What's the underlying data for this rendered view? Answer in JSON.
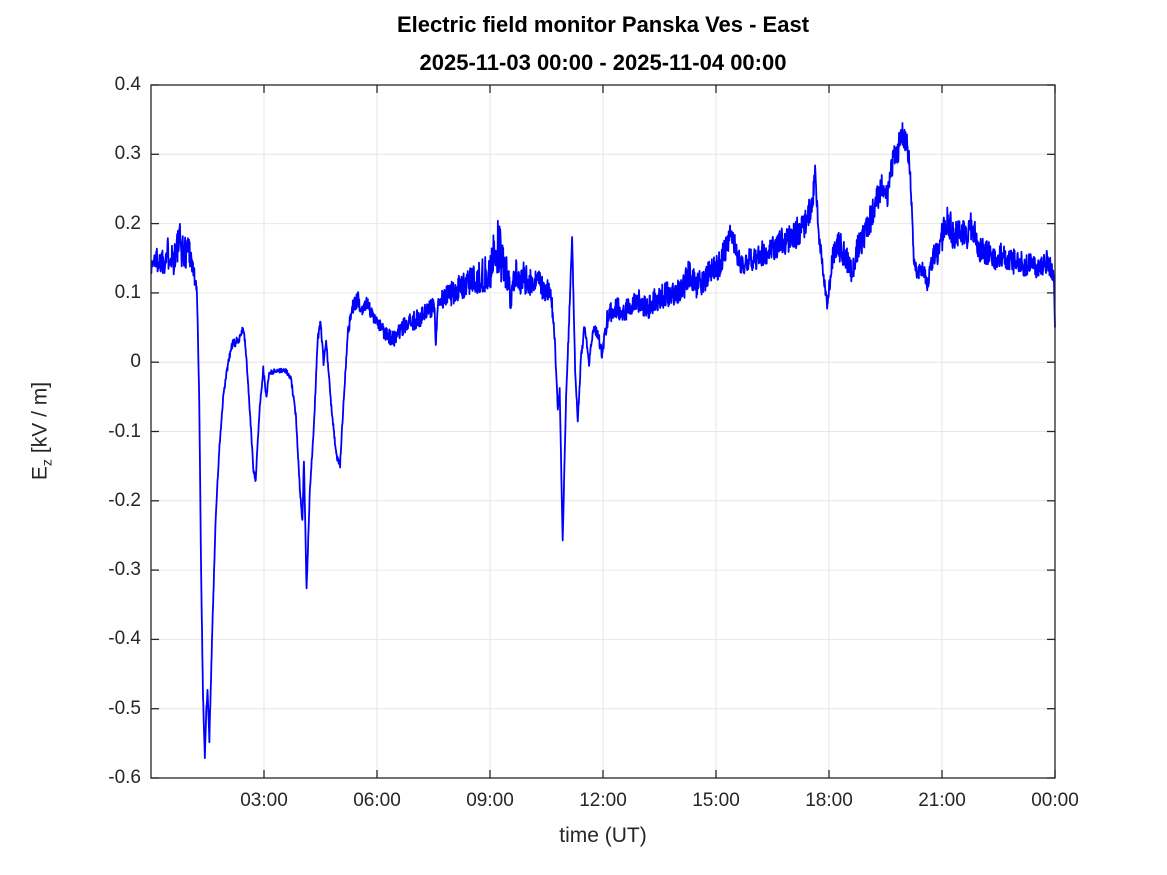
{
  "colors": {
    "line": "#0000FF",
    "grid": "#E6E6E6",
    "axis": "#262626",
    "title": "#000000",
    "background": "#FFFFFF"
  },
  "chart_data": {
    "type": "line",
    "title": "Electric field monitor Panska Ves - East",
    "subtitle": "2025-11-03 00:00 - 2025-11-04 00:00",
    "xlabel": "time (UT)",
    "ylabel": "E_z [kV / m]",
    "ylabel_parts": {
      "base": "E",
      "sub": "z",
      "units": " [kV / m]"
    },
    "grid": true,
    "legend": "none",
    "xlim_hours": [
      0,
      24
    ],
    "ylim": [
      -0.6,
      0.4
    ],
    "xticks": [
      {
        "hour": 3,
        "label": "03:00"
      },
      {
        "hour": 6,
        "label": "06:00"
      },
      {
        "hour": 9,
        "label": "09:00"
      },
      {
        "hour": 12,
        "label": "12:00"
      },
      {
        "hour": 15,
        "label": "15:00"
      },
      {
        "hour": 18,
        "label": "18:00"
      },
      {
        "hour": 21,
        "label": "21:00"
      },
      {
        "hour": 24,
        "label": "00:00"
      }
    ],
    "yticks": [
      {
        "value": 0.4,
        "label": "0.4"
      },
      {
        "value": 0.3,
        "label": "0.3"
      },
      {
        "value": 0.2,
        "label": "0.2"
      },
      {
        "value": 0.1,
        "label": "0.1"
      },
      {
        "value": 0.0,
        "label": "0"
      },
      {
        "value": -0.1,
        "label": "-0.1"
      },
      {
        "value": -0.2,
        "label": "-0.2"
      },
      {
        "value": -0.3,
        "label": "-0.3"
      },
      {
        "value": -0.4,
        "label": "-0.4"
      },
      {
        "value": -0.5,
        "label": "-0.5"
      },
      {
        "value": -0.6,
        "label": "-0.6"
      }
    ],
    "series": [
      {
        "name": "Ez",
        "units": "kV/m",
        "color": "#0000FF",
        "keypoints_format": "[time_hours, value_kV_per_m, noise_amplitude]",
        "keypoints": [
          [
            0.0,
            0.135,
            0.012
          ],
          [
            0.1,
            0.15,
            0.018
          ],
          [
            0.22,
            0.145,
            0.02
          ],
          [
            0.35,
            0.15,
            0.022
          ],
          [
            0.5,
            0.16,
            0.026
          ],
          [
            0.62,
            0.15,
            0.028
          ],
          [
            0.75,
            0.175,
            0.03
          ],
          [
            0.88,
            0.155,
            0.025
          ],
          [
            1.0,
            0.17,
            0.028
          ],
          [
            1.08,
            0.145,
            0.018
          ],
          [
            1.15,
            0.125,
            0.014
          ],
          [
            1.22,
            0.1,
            0.008
          ],
          [
            1.28,
            -0.05,
            0.004
          ],
          [
            1.33,
            -0.3,
            0.004
          ],
          [
            1.38,
            -0.48,
            0.004
          ],
          [
            1.43,
            -0.57,
            0.004
          ],
          [
            1.47,
            -0.5,
            0.004
          ],
          [
            1.5,
            -0.475,
            0.004
          ],
          [
            1.55,
            -0.545,
            0.004
          ],
          [
            1.62,
            -0.4,
            0.004
          ],
          [
            1.72,
            -0.22,
            0.004
          ],
          [
            1.82,
            -0.12,
            0.004
          ],
          [
            1.92,
            -0.05,
            0.004
          ],
          [
            2.02,
            -0.01,
            0.005
          ],
          [
            2.15,
            0.025,
            0.006
          ],
          [
            2.3,
            0.03,
            0.007
          ],
          [
            2.45,
            0.05,
            0.005
          ],
          [
            2.52,
            0.015,
            0.005
          ],
          [
            2.6,
            -0.05,
            0.004
          ],
          [
            2.72,
            -0.155,
            0.004
          ],
          [
            2.78,
            -0.17,
            0.004
          ],
          [
            2.88,
            -0.07,
            0.004
          ],
          [
            2.98,
            -0.01,
            0.004
          ],
          [
            3.06,
            -0.05,
            0.004
          ],
          [
            3.14,
            -0.015,
            0.004
          ],
          [
            3.35,
            -0.012,
            0.003
          ],
          [
            3.58,
            -0.012,
            0.003
          ],
          [
            3.72,
            -0.025,
            0.004
          ],
          [
            3.85,
            -0.08,
            0.004
          ],
          [
            3.95,
            -0.18,
            0.004
          ],
          [
            4.02,
            -0.23,
            0.004
          ],
          [
            4.06,
            -0.14,
            0.004
          ],
          [
            4.13,
            -0.33,
            0.004
          ],
          [
            4.22,
            -0.18,
            0.004
          ],
          [
            4.32,
            -0.1,
            0.005
          ],
          [
            4.42,
            0.03,
            0.006
          ],
          [
            4.5,
            0.06,
            0.006
          ],
          [
            4.58,
            0.0,
            0.005
          ],
          [
            4.65,
            0.03,
            0.005
          ],
          [
            4.78,
            -0.06,
            0.004
          ],
          [
            4.92,
            -0.135,
            0.004
          ],
          [
            5.02,
            -0.148,
            0.004
          ],
          [
            5.12,
            -0.05,
            0.005
          ],
          [
            5.22,
            0.04,
            0.008
          ],
          [
            5.35,
            0.08,
            0.01
          ],
          [
            5.5,
            0.09,
            0.012
          ],
          [
            5.62,
            0.075,
            0.012
          ],
          [
            5.72,
            0.09,
            0.01
          ],
          [
            5.85,
            0.07,
            0.01
          ],
          [
            6.0,
            0.055,
            0.01
          ],
          [
            6.2,
            0.045,
            0.012
          ],
          [
            6.45,
            0.032,
            0.012
          ],
          [
            6.7,
            0.05,
            0.013
          ],
          [
            7.0,
            0.06,
            0.014
          ],
          [
            7.3,
            0.07,
            0.015
          ],
          [
            7.52,
            0.08,
            0.016
          ],
          [
            7.56,
            0.03,
            0.006
          ],
          [
            7.62,
            0.085,
            0.015
          ],
          [
            8.0,
            0.1,
            0.018
          ],
          [
            8.4,
            0.115,
            0.02
          ],
          [
            8.8,
            0.125,
            0.024
          ],
          [
            9.0,
            0.13,
            0.028
          ],
          [
            9.2,
            0.17,
            0.045
          ],
          [
            9.35,
            0.14,
            0.03
          ],
          [
            9.5,
            0.125,
            0.024
          ],
          [
            9.55,
            0.07,
            0.008
          ],
          [
            9.62,
            0.125,
            0.024
          ],
          [
            9.9,
            0.12,
            0.024
          ],
          [
            10.2,
            0.115,
            0.02
          ],
          [
            10.5,
            0.105,
            0.018
          ],
          [
            10.62,
            0.1,
            0.014
          ],
          [
            10.72,
            0.03,
            0.008
          ],
          [
            10.8,
            -0.07,
            0.005
          ],
          [
            10.85,
            -0.04,
            0.005
          ],
          [
            10.93,
            -0.26,
            0.004
          ],
          [
            11.02,
            -0.05,
            0.005
          ],
          [
            11.1,
            0.06,
            0.008
          ],
          [
            11.18,
            0.18,
            0.004
          ],
          [
            11.26,
            -0.01,
            0.005
          ],
          [
            11.33,
            -0.085,
            0.004
          ],
          [
            11.42,
            0.01,
            0.006
          ],
          [
            11.52,
            0.055,
            0.008
          ],
          [
            11.63,
            0.0,
            0.006
          ],
          [
            11.75,
            0.05,
            0.009
          ],
          [
            11.88,
            0.035,
            0.009
          ],
          [
            11.98,
            0.012,
            0.008
          ],
          [
            12.1,
            0.06,
            0.014
          ],
          [
            12.3,
            0.08,
            0.016
          ],
          [
            12.6,
            0.075,
            0.017
          ],
          [
            12.9,
            0.09,
            0.017
          ],
          [
            13.2,
            0.08,
            0.017
          ],
          [
            13.5,
            0.095,
            0.018
          ],
          [
            13.8,
            0.1,
            0.019
          ],
          [
            14.1,
            0.105,
            0.02
          ],
          [
            14.3,
            0.13,
            0.021
          ],
          [
            14.5,
            0.11,
            0.019
          ],
          [
            14.8,
            0.125,
            0.02
          ],
          [
            15.1,
            0.14,
            0.02
          ],
          [
            15.4,
            0.185,
            0.018
          ],
          [
            15.65,
            0.14,
            0.016
          ],
          [
            15.9,
            0.15,
            0.018
          ],
          [
            16.2,
            0.155,
            0.02
          ],
          [
            16.5,
            0.165,
            0.02
          ],
          [
            16.8,
            0.175,
            0.02
          ],
          [
            17.1,
            0.185,
            0.022
          ],
          [
            17.4,
            0.2,
            0.022
          ],
          [
            17.58,
            0.24,
            0.018
          ],
          [
            17.63,
            0.278,
            0.008
          ],
          [
            17.72,
            0.19,
            0.014
          ],
          [
            17.85,
            0.13,
            0.01
          ],
          [
            17.95,
            0.085,
            0.008
          ],
          [
            18.1,
            0.15,
            0.018
          ],
          [
            18.25,
            0.17,
            0.022
          ],
          [
            18.45,
            0.15,
            0.022
          ],
          [
            18.6,
            0.13,
            0.016
          ],
          [
            18.8,
            0.17,
            0.022
          ],
          [
            19.0,
            0.19,
            0.022
          ],
          [
            19.2,
            0.225,
            0.022
          ],
          [
            19.4,
            0.25,
            0.022
          ],
          [
            19.55,
            0.24,
            0.018
          ],
          [
            19.7,
            0.29,
            0.018
          ],
          [
            19.85,
            0.31,
            0.02
          ],
          [
            19.95,
            0.33,
            0.016
          ],
          [
            20.05,
            0.32,
            0.018
          ],
          [
            20.15,
            0.28,
            0.014
          ],
          [
            20.25,
            0.15,
            0.01
          ],
          [
            20.35,
            0.125,
            0.01
          ],
          [
            20.5,
            0.14,
            0.013
          ],
          [
            20.6,
            0.11,
            0.01
          ],
          [
            20.75,
            0.15,
            0.016
          ],
          [
            20.9,
            0.16,
            0.018
          ],
          [
            21.05,
            0.19,
            0.022
          ],
          [
            21.15,
            0.21,
            0.026
          ],
          [
            21.3,
            0.18,
            0.02
          ],
          [
            21.5,
            0.19,
            0.02
          ],
          [
            21.65,
            0.18,
            0.018
          ],
          [
            21.8,
            0.2,
            0.022
          ],
          [
            22.0,
            0.165,
            0.02
          ],
          [
            22.2,
            0.16,
            0.02
          ],
          [
            22.4,
            0.15,
            0.018
          ],
          [
            22.6,
            0.155,
            0.018
          ],
          [
            22.8,
            0.145,
            0.018
          ],
          [
            23.0,
            0.145,
            0.018
          ],
          [
            23.2,
            0.14,
            0.018
          ],
          [
            23.4,
            0.14,
            0.016
          ],
          [
            23.6,
            0.135,
            0.016
          ],
          [
            23.78,
            0.145,
            0.016
          ],
          [
            23.9,
            0.135,
            0.013
          ],
          [
            23.97,
            0.12,
            0.008
          ],
          [
            24.0,
            0.05,
            0.004
          ]
        ]
      }
    ]
  }
}
